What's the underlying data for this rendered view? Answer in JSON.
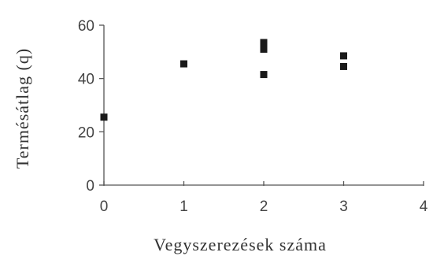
{
  "chart_data": {
    "type": "scatter",
    "title": "",
    "xlabel": "Vegyszerezések száma",
    "ylabel": "Termésátlag (q)",
    "xlim": [
      0,
      4
    ],
    "ylim": [
      0,
      60
    ],
    "x_ticks": [
      "0",
      "1",
      "2",
      "3",
      "4"
    ],
    "y_ticks": [
      "0",
      "20",
      "40",
      "60"
    ],
    "grid": false,
    "legend": "none",
    "marker": "square",
    "marker_color": "#1a1a1a",
    "series": [
      {
        "points": [
          {
            "x": 0,
            "y": 25.5
          },
          {
            "x": 1,
            "y": 45.5
          },
          {
            "x": 2,
            "y": 53.5
          },
          {
            "x": 2,
            "y": 51
          },
          {
            "x": 2,
            "y": 41.5
          },
          {
            "x": 3,
            "y": 48.5
          },
          {
            "x": 3,
            "y": 44.5
          }
        ]
      }
    ]
  }
}
